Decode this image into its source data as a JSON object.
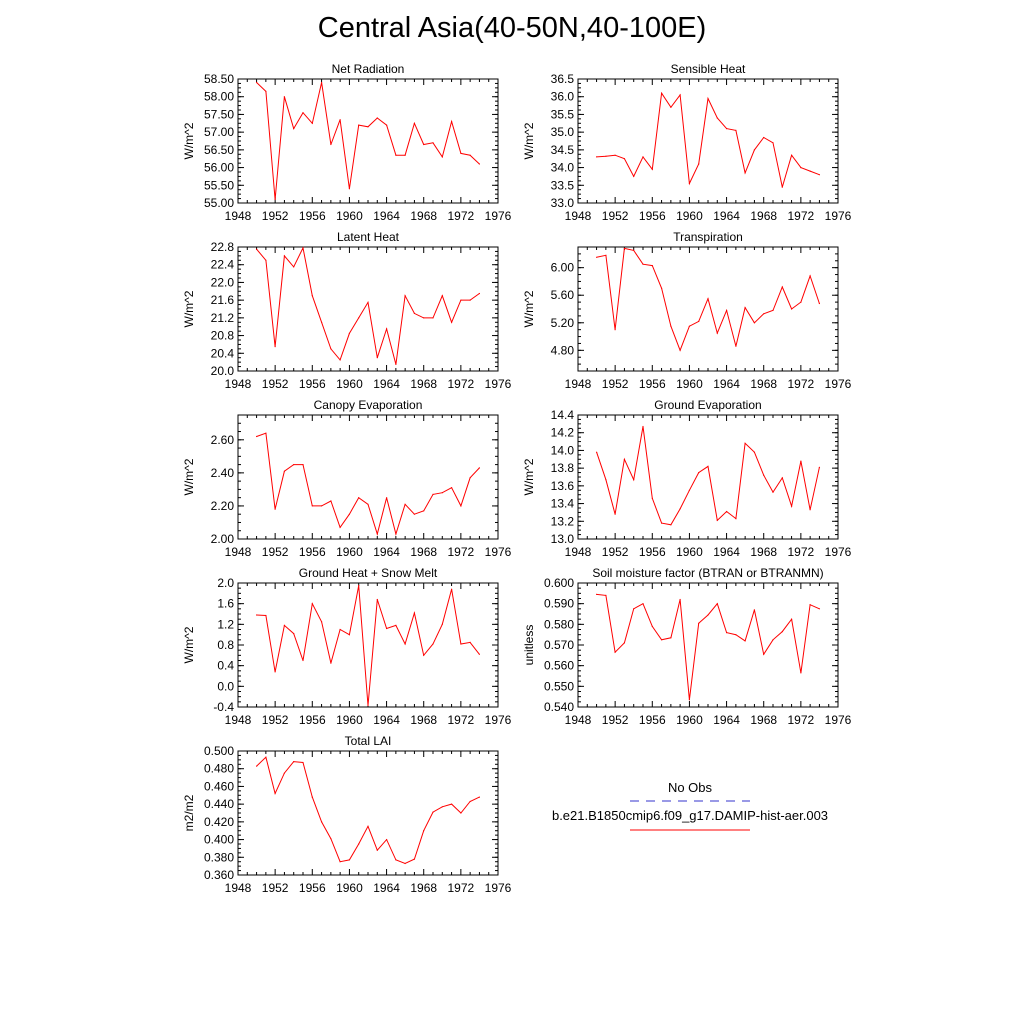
{
  "page": {
    "title": "Central Asia(40-50N,40-100E)"
  },
  "legend": {
    "entries": [
      {
        "label": "No Obs",
        "color": "#3333cc",
        "style": "dashed"
      },
      {
        "label": "b.e21.B1850cmip6.f09_g17.DAMIP-hist-aer.003",
        "color": "#ff0000",
        "style": "solid"
      }
    ]
  },
  "chart_data": [
    {
      "type": "line",
      "title": "Net Radiation",
      "ylabel": "W/m^2",
      "xlim": [
        1948,
        1976
      ],
      "x_ticks": [
        1948,
        1952,
        1956,
        1960,
        1964,
        1968,
        1972,
        1976
      ],
      "ylim": [
        55.0,
        58.5
      ],
      "y_ticks": [
        "55.00",
        "55.50",
        "56.00",
        "56.50",
        "57.00",
        "57.50",
        "58.00",
        "58.50"
      ],
      "series": [
        {
          "color": "#ff0000",
          "x": [
            1950,
            1951,
            1952,
            1953,
            1954,
            1955,
            1956,
            1957,
            1958,
            1959,
            1960,
            1961,
            1962,
            1963,
            1964,
            1965,
            1966,
            1967,
            1968,
            1969,
            1970,
            1971,
            1972,
            1973,
            1974
          ],
          "values": [
            58.4,
            58.15,
            55.1,
            58.0,
            57.1,
            57.55,
            57.25,
            58.4,
            56.65,
            57.35,
            55.4,
            57.2,
            57.15,
            57.4,
            57.2,
            56.35,
            56.35,
            57.25,
            56.65,
            56.7,
            56.3,
            57.3,
            56.4,
            56.35,
            56.1
          ]
        }
      ]
    },
    {
      "type": "line",
      "title": "Sensible Heat",
      "ylabel": "W/m^2",
      "xlim": [
        1948,
        1976
      ],
      "x_ticks": [
        1948,
        1952,
        1956,
        1960,
        1964,
        1968,
        1972,
        1976
      ],
      "ylim": [
        33.0,
        36.5
      ],
      "y_ticks": [
        "33.0",
        "33.5",
        "34.0",
        "34.5",
        "35.0",
        "35.5",
        "36.0",
        "36.5"
      ],
      "series": [
        {
          "color": "#ff0000",
          "x": [
            1950,
            1951,
            1952,
            1953,
            1954,
            1955,
            1956,
            1957,
            1958,
            1959,
            1960,
            1961,
            1962,
            1963,
            1964,
            1965,
            1966,
            1967,
            1968,
            1969,
            1970,
            1971,
            1972,
            1973,
            1974
          ],
          "values": [
            34.3,
            34.32,
            34.35,
            34.25,
            33.75,
            34.3,
            33.95,
            36.1,
            35.7,
            36.05,
            33.55,
            34.1,
            35.95,
            35.4,
            35.1,
            35.05,
            33.85,
            34.5,
            34.85,
            34.7,
            33.45,
            34.35,
            34.0,
            33.9,
            33.8
          ]
        }
      ]
    },
    {
      "type": "line",
      "title": "Latent Heat",
      "ylabel": "W/m^2",
      "xlim": [
        1948,
        1976
      ],
      "x_ticks": [
        1948,
        1952,
        1956,
        1960,
        1964,
        1968,
        1972,
        1976
      ],
      "ylim": [
        20.0,
        22.8
      ],
      "y_ticks": [
        "20.0",
        "20.4",
        "20.8",
        "21.2",
        "21.6",
        "22.0",
        "22.4",
        "22.8"
      ],
      "series": [
        {
          "color": "#ff0000",
          "x": [
            1950,
            1951,
            1952,
            1953,
            1954,
            1955,
            1956,
            1957,
            1958,
            1959,
            1960,
            1961,
            1962,
            1963,
            1964,
            1965,
            1966,
            1967,
            1968,
            1969,
            1970,
            1971,
            1972,
            1973,
            1974
          ],
          "values": [
            22.75,
            22.5,
            20.55,
            22.6,
            22.35,
            22.78,
            21.7,
            21.1,
            20.5,
            20.25,
            20.85,
            21.2,
            21.55,
            20.3,
            20.95,
            20.15,
            21.7,
            21.3,
            21.2,
            21.2,
            21.7,
            21.1,
            21.6,
            21.6,
            21.75
          ]
        }
      ]
    },
    {
      "type": "line",
      "title": "Transpiration",
      "ylabel": "W/m^2",
      "xlim": [
        1948,
        1976
      ],
      "x_ticks": [
        1948,
        1952,
        1956,
        1960,
        1964,
        1968,
        1972,
        1976
      ],
      "ylim": [
        4.5,
        6.3
      ],
      "y_ticks": [
        "4.80",
        "5.20",
        "5.60",
        "6.00"
      ],
      "series": [
        {
          "color": "#ff0000",
          "x": [
            1950,
            1951,
            1952,
            1953,
            1954,
            1955,
            1956,
            1957,
            1958,
            1959,
            1960,
            1961,
            1962,
            1963,
            1964,
            1965,
            1966,
            1967,
            1968,
            1969,
            1970,
            1971,
            1972,
            1973,
            1974
          ],
          "values": [
            6.15,
            6.18,
            5.1,
            6.28,
            6.25,
            6.05,
            6.03,
            5.7,
            5.15,
            4.8,
            5.15,
            5.22,
            5.55,
            5.05,
            5.38,
            4.86,
            5.42,
            5.2,
            5.33,
            5.38,
            5.72,
            5.4,
            5.5,
            5.88,
            5.48
          ]
        }
      ]
    },
    {
      "type": "line",
      "title": "Canopy Evaporation",
      "ylabel": "W/m^2",
      "xlim": [
        1948,
        1976
      ],
      "x_ticks": [
        1948,
        1952,
        1956,
        1960,
        1964,
        1968,
        1972,
        1976
      ],
      "ylim": [
        2.0,
        2.75
      ],
      "y_ticks": [
        "2.00",
        "2.20",
        "2.40",
        "2.60"
      ],
      "series": [
        {
          "color": "#ff0000",
          "x": [
            1950,
            1951,
            1952,
            1953,
            1954,
            1955,
            1956,
            1957,
            1958,
            1959,
            1960,
            1961,
            1962,
            1963,
            1964,
            1965,
            1966,
            1967,
            1968,
            1969,
            1970,
            1971,
            1972,
            1973,
            1974
          ],
          "values": [
            2.62,
            2.64,
            2.18,
            2.41,
            2.45,
            2.45,
            2.2,
            2.2,
            2.23,
            2.07,
            2.15,
            2.25,
            2.21,
            2.03,
            2.25,
            2.03,
            2.21,
            2.15,
            2.17,
            2.27,
            2.28,
            2.31,
            2.2,
            2.37,
            2.43
          ]
        }
      ]
    },
    {
      "type": "line",
      "title": "Ground Evaporation",
      "ylabel": "W/m^2",
      "xlim": [
        1948,
        1976
      ],
      "x_ticks": [
        1948,
        1952,
        1956,
        1960,
        1964,
        1968,
        1972,
        1976
      ],
      "ylim": [
        13.0,
        14.4
      ],
      "y_ticks": [
        "13.0",
        "13.2",
        "13.4",
        "13.6",
        "13.8",
        "14.0",
        "14.2",
        "14.4"
      ],
      "series": [
        {
          "color": "#ff0000",
          "x": [
            1950,
            1951,
            1952,
            1953,
            1954,
            1955,
            1956,
            1957,
            1958,
            1959,
            1960,
            1961,
            1962,
            1963,
            1964,
            1965,
            1966,
            1967,
            1968,
            1969,
            1970,
            1971,
            1972,
            1973,
            1974
          ],
          "values": [
            13.98,
            13.67,
            13.28,
            13.9,
            13.67,
            14.27,
            13.46,
            13.18,
            13.16,
            13.34,
            13.55,
            13.75,
            13.82,
            13.21,
            13.31,
            13.23,
            14.08,
            13.98,
            13.72,
            13.53,
            13.69,
            13.37,
            13.88,
            13.33,
            13.81
          ]
        }
      ]
    },
    {
      "type": "line",
      "title": "Ground Heat + Snow Melt",
      "ylabel": "W/m^2",
      "xlim": [
        1948,
        1976
      ],
      "x_ticks": [
        1948,
        1952,
        1956,
        1960,
        1964,
        1968,
        1972,
        1976
      ],
      "ylim": [
        -0.4,
        2.0
      ],
      "y_ticks": [
        "-0.4",
        "0.0",
        "0.4",
        "0.8",
        "1.2",
        "1.6",
        "2.0"
      ],
      "series": [
        {
          "color": "#ff0000",
          "x": [
            1950,
            1951,
            1952,
            1953,
            1954,
            1955,
            1956,
            1957,
            1958,
            1959,
            1960,
            1961,
            1962,
            1963,
            1964,
            1965,
            1966,
            1967,
            1968,
            1969,
            1970,
            1971,
            1972,
            1973,
            1974
          ],
          "values": [
            1.38,
            1.37,
            0.28,
            1.18,
            1.02,
            0.5,
            1.6,
            1.25,
            0.45,
            1.1,
            1.0,
            1.95,
            -0.37,
            1.68,
            1.12,
            1.18,
            0.82,
            1.42,
            0.6,
            0.82,
            1.2,
            1.88,
            0.82,
            0.85,
            0.62
          ]
        }
      ]
    },
    {
      "type": "line",
      "title": "Soil moisture factor (BTRAN or BTRANMN)",
      "ylabel": "unitless",
      "xlim": [
        1948,
        1976
      ],
      "x_ticks": [
        1948,
        1952,
        1956,
        1960,
        1964,
        1968,
        1972,
        1976
      ],
      "ylim": [
        0.54,
        0.6
      ],
      "y_ticks": [
        "0.540",
        "0.550",
        "0.560",
        "0.570",
        "0.580",
        "0.590",
        "0.600"
      ],
      "series": [
        {
          "color": "#ff0000",
          "x": [
            1950,
            1951,
            1952,
            1953,
            1954,
            1955,
            1956,
            1957,
            1958,
            1959,
            1960,
            1961,
            1962,
            1963,
            1964,
            1965,
            1966,
            1967,
            1968,
            1969,
            1970,
            1971,
            1972,
            1973,
            1974
          ],
          "values": [
            0.5945,
            0.594,
            0.5665,
            0.571,
            0.5875,
            0.59,
            0.579,
            0.5725,
            0.5735,
            0.592,
            0.5435,
            0.5805,
            0.5845,
            0.59,
            0.576,
            0.575,
            0.572,
            0.587,
            0.5655,
            0.5725,
            0.5765,
            0.5825,
            0.5565,
            0.5895,
            0.5875
          ]
        }
      ]
    },
    {
      "type": "line",
      "title": "Total LAI",
      "ylabel": "m2/m2",
      "xlim": [
        1948,
        1976
      ],
      "x_ticks": [
        1948,
        1952,
        1956,
        1960,
        1964,
        1968,
        1972,
        1976
      ],
      "ylim": [
        0.36,
        0.5
      ],
      "y_ticks": [
        "0.360",
        "0.380",
        "0.400",
        "0.420",
        "0.440",
        "0.460",
        "0.480",
        "0.500"
      ],
      "series": [
        {
          "color": "#ff0000",
          "x": [
            1950,
            1951,
            1952,
            1953,
            1954,
            1955,
            1956,
            1957,
            1958,
            1959,
            1960,
            1961,
            1962,
            1963,
            1964,
            1965,
            1966,
            1967,
            1968,
            1969,
            1970,
            1971,
            1972,
            1973,
            1974
          ],
          "values": [
            0.483,
            0.493,
            0.452,
            0.475,
            0.488,
            0.487,
            0.448,
            0.42,
            0.401,
            0.375,
            0.377,
            0.395,
            0.415,
            0.388,
            0.4,
            0.377,
            0.373,
            0.378,
            0.41,
            0.431,
            0.437,
            0.44,
            0.43,
            0.443,
            0.448
          ]
        }
      ]
    }
  ]
}
